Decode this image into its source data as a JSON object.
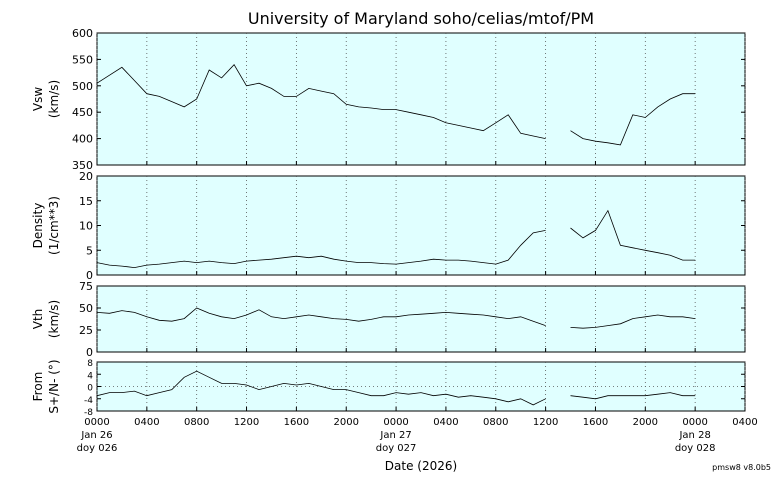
{
  "chart_data": {
    "type": "line",
    "title": "University of Maryland  soho/celias/mtof/PM",
    "xlabel": "Date (2026)",
    "footer": "pmsw8 v8.0b5",
    "grid": true,
    "background": "#e0ffff",
    "x": [
      "2026-01-26T00:00",
      "2026-01-26T01:00",
      "2026-01-26T02:00",
      "2026-01-26T03:00",
      "2026-01-26T04:00",
      "2026-01-26T05:00",
      "2026-01-26T06:00",
      "2026-01-26T07:00",
      "2026-01-26T08:00",
      "2026-01-26T09:00",
      "2026-01-26T10:00",
      "2026-01-26T11:00",
      "2026-01-26T12:00",
      "2026-01-26T13:00",
      "2026-01-26T14:00",
      "2026-01-26T15:00",
      "2026-01-26T16:00",
      "2026-01-26T17:00",
      "2026-01-26T18:00",
      "2026-01-26T19:00",
      "2026-01-26T20:00",
      "2026-01-26T21:00",
      "2026-01-26T22:00",
      "2026-01-26T23:00",
      "2026-01-27T00:00",
      "2026-01-27T01:00",
      "2026-01-27T02:00",
      "2026-01-27T03:00",
      "2026-01-27T04:00",
      "2026-01-27T05:00",
      "2026-01-27T06:00",
      "2026-01-27T07:00",
      "2026-01-27T08:00",
      "2026-01-27T09:00",
      "2026-01-27T10:00",
      "2026-01-27T11:00",
      "2026-01-27T12:00",
      "2026-01-27T13:00",
      "2026-01-27T14:00",
      "2026-01-27T15:00",
      "2026-01-27T16:00",
      "2026-01-27T17:00",
      "2026-01-27T18:00",
      "2026-01-27T19:00",
      "2026-01-27T20:00",
      "2026-01-27T21:00",
      "2026-01-27T22:00",
      "2026-01-27T23:00",
      "2026-01-28T00:00"
    ],
    "xlim": [
      "2026-01-26T00:00",
      "2026-01-28T04:00"
    ],
    "xticks": [
      {
        "value": "2026-01-26T00:00",
        "label": [
          "0000",
          "Jan 26",
          "doy 026"
        ]
      },
      {
        "value": "2026-01-26T04:00",
        "label": [
          "0400"
        ]
      },
      {
        "value": "2026-01-26T08:00",
        "label": [
          "0800"
        ]
      },
      {
        "value": "2026-01-26T12:00",
        "label": [
          "1200"
        ]
      },
      {
        "value": "2026-01-26T16:00",
        "label": [
          "1600"
        ]
      },
      {
        "value": "2026-01-26T20:00",
        "label": [
          "2000"
        ]
      },
      {
        "value": "2026-01-27T00:00",
        "label": [
          "0000",
          "Jan 27",
          "doy 027"
        ]
      },
      {
        "value": "2026-01-27T04:00",
        "label": [
          "0400"
        ]
      },
      {
        "value": "2026-01-27T08:00",
        "label": [
          "0800"
        ]
      },
      {
        "value": "2026-01-27T12:00",
        "label": [
          "1200"
        ]
      },
      {
        "value": "2026-01-27T16:00",
        "label": [
          "1600"
        ]
      },
      {
        "value": "2026-01-27T20:00",
        "label": [
          "2000"
        ]
      },
      {
        "value": "2026-01-28T00:00",
        "label": [
          "0000",
          "Jan 28",
          "doy 028"
        ]
      },
      {
        "value": "2026-01-28T04:00",
        "label": [
          "0400"
        ]
      }
    ],
    "panels": [
      {
        "ylabel": [
          "Vsw",
          "(km/s)"
        ],
        "color": "#000000",
        "ylim": [
          350,
          600
        ],
        "yticks": [
          350,
          400,
          450,
          500,
          550,
          600
        ],
        "values": [
          505,
          520,
          535,
          510,
          485,
          480,
          470,
          460,
          475,
          530,
          515,
          540,
          500,
          505,
          495,
          480,
          480,
          495,
          490,
          485,
          465,
          460,
          458,
          455,
          455,
          450,
          445,
          440,
          430,
          425,
          420,
          415,
          430,
          445,
          410,
          405,
          400,
          null,
          415,
          400,
          395,
          392,
          388,
          445,
          440,
          460,
          475,
          485,
          485
        ]
      },
      {
        "ylabel": [
          "Density",
          "(1/cm**3)"
        ],
        "color": "#000000",
        "ylim": [
          0,
          20
        ],
        "yticks": [
          0,
          5,
          10,
          15,
          20
        ],
        "values": [
          2.5,
          2,
          1.8,
          1.5,
          2,
          2.2,
          2.5,
          2.8,
          2.5,
          2.8,
          2.5,
          2.3,
          2.8,
          3,
          3.2,
          3.5,
          3.8,
          3.5,
          3.8,
          3.2,
          2.8,
          2.5,
          2.5,
          2.3,
          2.2,
          2.5,
          2.8,
          3.2,
          3,
          3,
          2.8,
          2.5,
          2.2,
          3,
          6,
          8.5,
          9,
          null,
          9.5,
          7.5,
          9,
          13,
          6,
          5.5,
          5,
          4.5,
          4,
          3,
          3
        ]
      },
      {
        "ylabel": [
          "Vth",
          "(km/s)"
        ],
        "color": "#000000",
        "ylim": [
          0,
          75
        ],
        "yticks": [
          0,
          25,
          50,
          75
        ],
        "values": [
          45,
          44,
          47,
          45,
          40,
          36,
          35,
          38,
          50,
          44,
          40,
          38,
          42,
          48,
          40,
          38,
          40,
          42,
          40,
          38,
          37,
          35,
          37,
          40,
          40,
          42,
          43,
          44,
          45,
          44,
          43,
          42,
          40,
          38,
          40,
          35,
          30,
          null,
          28,
          27,
          28,
          30,
          32,
          38,
          40,
          42,
          40,
          40,
          38
        ]
      },
      {
        "ylabel": [
          "From",
          "S+/N- (°)"
        ],
        "color": "#000000",
        "ylim": [
          -8,
          8
        ],
        "yticks": [
          -8,
          -4,
          0,
          4,
          8
        ],
        "zero_line": true,
        "values": [
          -3,
          -2,
          -2,
          -1.5,
          -3,
          -2,
          -1,
          3,
          5,
          3,
          1,
          1,
          0.5,
          -1,
          0,
          1,
          0.5,
          1,
          0,
          -1,
          -1,
          -2,
          -3,
          -3,
          -2,
          -2.5,
          -2,
          -3,
          -2.5,
          -3.5,
          -3,
          -3.5,
          -4,
          -5,
          -4,
          -6,
          -4,
          null,
          -3,
          -3.5,
          -4,
          -3,
          -3,
          -3,
          -3,
          -2.5,
          -2,
          -3,
          -3
        ]
      }
    ]
  }
}
